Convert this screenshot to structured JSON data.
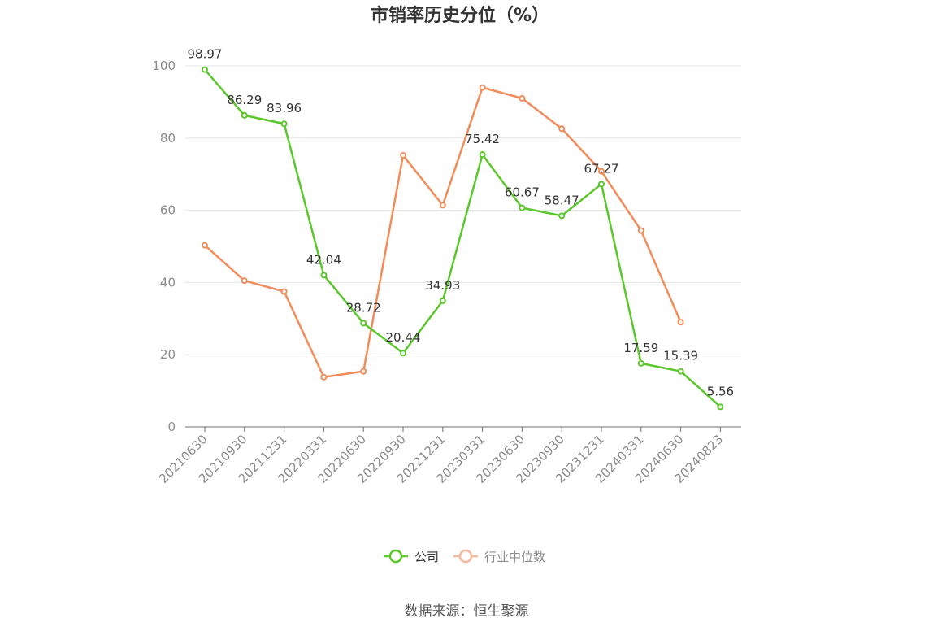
{
  "chart_data": {
    "type": "line",
    "title": "市销率历史分位（%）",
    "x": [
      "20210630",
      "20210930",
      "20211231",
      "20220331",
      "20220630",
      "20220930",
      "20221231",
      "20230331",
      "20230630",
      "20230930",
      "20231231",
      "20240331",
      "20240630",
      "20240823"
    ],
    "ylim": [
      0,
      100
    ],
    "yticks": [
      0,
      20,
      40,
      60,
      80,
      100
    ],
    "grid": true,
    "legend_position": "bottom",
    "series": [
      {
        "name": "公司",
        "color": "#5cc72c",
        "values": [
          98.97,
          86.29,
          83.96,
          42.04,
          28.72,
          20.44,
          34.93,
          75.42,
          60.67,
          58.47,
          67.27,
          17.59,
          15.39,
          5.56
        ],
        "labels": [
          "98.97",
          "86.29",
          "83.96",
          "42.04",
          "28.72",
          "20.44",
          "34.93",
          "75.42",
          "60.67",
          "58.47",
          "67.27",
          "17.59",
          "15.39",
          "5.56"
        ]
      },
      {
        "name": "行业中位数",
        "color": "#f28c5a",
        "legend_color": "#f6b99c",
        "values": [
          50.3,
          40.5,
          37.5,
          13.8,
          15.4,
          75.2,
          61.4,
          94.0,
          91.0,
          82.6,
          70.8,
          54.4,
          29.0,
          null
        ]
      }
    ]
  },
  "source": "数据来源：恒生聚源"
}
